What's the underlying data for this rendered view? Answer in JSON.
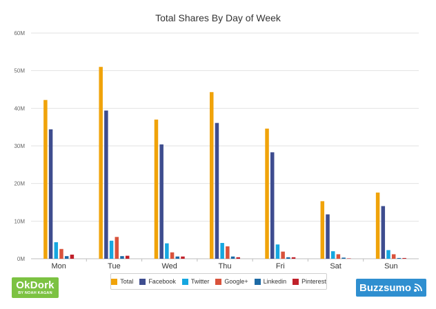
{
  "chart_data": {
    "type": "bar",
    "title": "Total Shares By Day of Week",
    "categories": [
      "Mon",
      "Tue",
      "Wed",
      "Thu",
      "Fri",
      "Sat",
      "Sun"
    ],
    "ylim": [
      0,
      60
    ],
    "yticks": [
      "0M",
      "10M",
      "20M",
      "30M",
      "40M",
      "50M",
      "60M"
    ],
    "legend_position": "bottom",
    "grid": true,
    "series": [
      {
        "name": "Total",
        "color": "#f0a30a",
        "values": [
          42.2,
          51.0,
          37.0,
          44.3,
          34.6,
          15.3,
          17.6
        ]
      },
      {
        "name": "Facebook",
        "color": "#3e4d8f",
        "values": [
          34.4,
          39.4,
          30.4,
          36.1,
          28.3,
          11.8,
          14.0
        ]
      },
      {
        "name": "Twitter",
        "color": "#16a7e0",
        "values": [
          4.4,
          4.8,
          4.1,
          4.2,
          3.8,
          2.0,
          2.3
        ]
      },
      {
        "name": "Google+",
        "color": "#d9533c",
        "values": [
          2.6,
          5.8,
          1.7,
          3.3,
          1.9,
          1.2,
          1.2
        ]
      },
      {
        "name": "Linkedin",
        "color": "#1d6aa5",
        "values": [
          0.7,
          0.7,
          0.6,
          0.6,
          0.4,
          0.3,
          0.2
        ]
      },
      {
        "name": "Pinterest",
        "color": "#c0202a",
        "values": [
          1.1,
          0.8,
          0.6,
          0.4,
          0.4,
          0.1,
          0.2
        ]
      }
    ]
  },
  "logos": {
    "okdork_main": "OkDork",
    "okdork_sub": "BY NOAH KAGAN",
    "buzzsumo": "Buzzsumo"
  }
}
